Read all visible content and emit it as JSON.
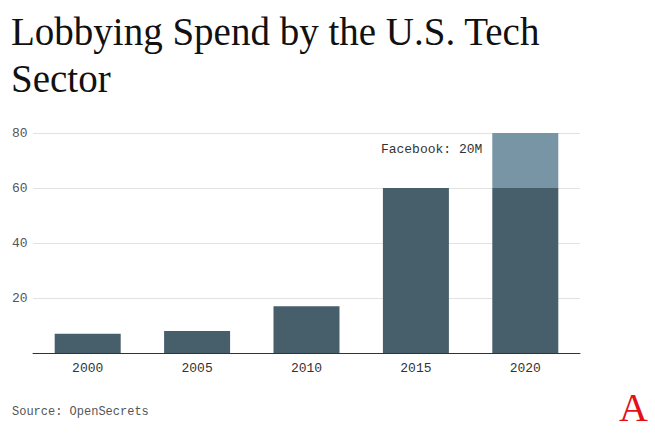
{
  "chart_data": {
    "type": "bar",
    "title": "Lobbying Spend by the U.S. Tech Sector",
    "categories": [
      "2000",
      "2005",
      "2010",
      "2015",
      "2020"
    ],
    "series": [
      {
        "color": "#475f6b",
        "values": [
          7,
          8,
          17,
          60,
          60
        ]
      },
      {
        "color": "#7895a6",
        "values": [
          null,
          null,
          null,
          null,
          20
        ],
        "annotation": "Facebook: 20M"
      }
    ],
    "stacked": true,
    "ylim": [
      0,
      80
    ],
    "yticks": [
      20,
      40,
      60,
      80
    ],
    "grid": true,
    "source": "Source: OpenSecrets",
    "brand": "A"
  }
}
